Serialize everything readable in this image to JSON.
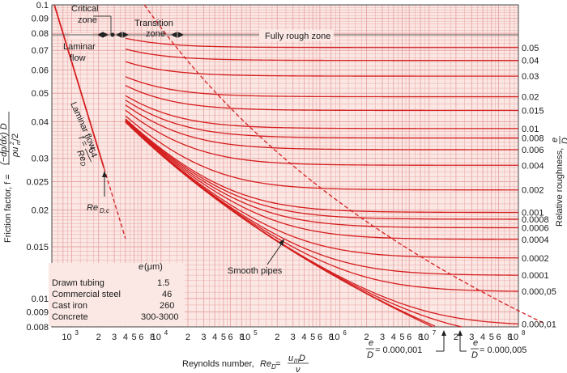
{
  "chart_data": {
    "type": "line",
    "title": "",
    "xlabel_prefix": "Reynolds number, ",
    "xlabel_symbol": "Re",
    "xlabel_sub": "D",
    "xlabel_eq": " = ",
    "xlabel_num": "u",
    "xlabel_num_sub": "m",
    "xlabel_num_tail": " D",
    "xlabel_den": "ν",
    "ylabel_left": "Friction factor, f = ",
    "ylabel_left_num": "(−dp/dx) D",
    "ylabel_left_den": "ρu",
    "ylabel_left_den_sup": "2",
    "ylabel_left_den_sub": "m",
    "ylabel_left_den_tail": "/2",
    "ylabel_right": "Relative roughness, ",
    "ylabel_right_num": "e",
    "ylabel_right_den": "D",
    "xscale": "log",
    "yscale": "log",
    "xlim": [
      600,
      100000000
    ],
    "ylim": [
      0.008,
      0.1
    ],
    "grid": true,
    "x_tick_labels": [
      {
        "x": 1000,
        "label": "10",
        "sup": "3"
      },
      {
        "x": 2000,
        "label": "2"
      },
      {
        "x": 3000,
        "label": "3"
      },
      {
        "x": 4000,
        "label": "4"
      },
      {
        "x": 5000,
        "label": "5"
      },
      {
        "x": 6000,
        "label": "6"
      },
      {
        "x": 8000,
        "label": "8"
      },
      {
        "x": 10000,
        "label": "10",
        "sup": "4"
      },
      {
        "x": 20000,
        "label": "2"
      },
      {
        "x": 30000,
        "label": "3"
      },
      {
        "x": 40000,
        "label": "4"
      },
      {
        "x": 50000,
        "label": "5"
      },
      {
        "x": 60000,
        "label": "6"
      },
      {
        "x": 80000,
        "label": "8"
      },
      {
        "x": 100000,
        "label": "10",
        "sup": "5"
      },
      {
        "x": 200000,
        "label": "2"
      },
      {
        "x": 300000,
        "label": "3"
      },
      {
        "x": 400000,
        "label": "4"
      },
      {
        "x": 500000,
        "label": "5"
      },
      {
        "x": 600000,
        "label": "6"
      },
      {
        "x": 800000,
        "label": "8"
      },
      {
        "x": 1000000,
        "label": "10",
        "sup": "6"
      },
      {
        "x": 2000000,
        "label": "2"
      },
      {
        "x": 3000000,
        "label": "3"
      },
      {
        "x": 4000000,
        "label": "4"
      },
      {
        "x": 5000000,
        "label": "5"
      },
      {
        "x": 6000000,
        "label": "6"
      },
      {
        "x": 8000000,
        "label": "8"
      },
      {
        "x": 10000000,
        "label": "10",
        "sup": "7"
      },
      {
        "x": 20000000,
        "label": "2"
      },
      {
        "x": 30000000,
        "label": "3"
      },
      {
        "x": 40000000,
        "label": "4"
      },
      {
        "x": 50000000,
        "label": "5"
      },
      {
        "x": 60000000,
        "label": "6"
      },
      {
        "x": 80000000,
        "label": "8"
      },
      {
        "x": 100000000,
        "label": "10",
        "sup": "8"
      }
    ],
    "y_tick_labels": [
      "0.1",
      "0.09",
      "0.08",
      "0.07",
      "0.06",
      "0.05",
      "0.04",
      "0.03",
      "0.025",
      "0.02",
      "0.015",
      "0.01",
      "0.009",
      "0.008"
    ],
    "y_tick_values": [
      0.1,
      0.09,
      0.08,
      0.07,
      0.06,
      0.05,
      0.04,
      0.03,
      0.025,
      0.02,
      0.015,
      0.01,
      0.009,
      0.008
    ],
    "series": [
      {
        "rr": 0.05,
        "label": "0.05"
      },
      {
        "rr": 0.04,
        "label": "0.04"
      },
      {
        "rr": 0.03,
        "label": "0.03"
      },
      {
        "rr": 0.02,
        "label": "0.02"
      },
      {
        "rr": 0.015,
        "label": "0.015"
      },
      {
        "rr": 0.01,
        "label": "0.01"
      },
      {
        "rr": 0.008,
        "label": "0.008"
      },
      {
        "rr": 0.006,
        "label": "0.006"
      },
      {
        "rr": 0.004,
        "label": "0.004"
      },
      {
        "rr": 0.002,
        "label": "0.002"
      },
      {
        "rr": 0.001,
        "label": "0.001"
      },
      {
        "rr": 0.0008,
        "label": "0.0008"
      },
      {
        "rr": 0.0006,
        "label": "0.0006"
      },
      {
        "rr": 0.0004,
        "label": "0.0004"
      },
      {
        "rr": 0.0002,
        "label": "0.0002"
      },
      {
        "rr": 0.0001,
        "label": "0.0001"
      },
      {
        "rr": 5e-05,
        "label": "0.000,05"
      },
      {
        "rr": 1e-05,
        "label": "0.000,01"
      },
      {
        "rr": 5e-06,
        "label": ""
      },
      {
        "rr": 1e-06,
        "label": ""
      },
      {
        "rr": 0,
        "label": ""
      }
    ],
    "laminar_formula": "f = 64/Re_D",
    "laminar_xrange": [
      600,
      2300
    ],
    "laminar_dashed_xrange": [
      2300,
      4000
    ],
    "colors": {
      "curve": "#d41e1e",
      "grid": "#e8a6a6",
      "background": "#fbe8e4",
      "text": "#1a1a1a"
    },
    "annotations": {
      "critical_zone": [
        "Critical",
        "zone"
      ],
      "transition_zone": [
        "Transition",
        "zone"
      ],
      "fully_rough_zone": "Fully rough zone",
      "laminar_flow_zone": [
        "Laminar",
        "flow"
      ],
      "laminar_flow_curve": "Laminar flow",
      "laminar_formula_f": "f = ",
      "laminar_formula_num": "64",
      "laminar_formula_den": "Re",
      "laminar_formula_den_sub": "D",
      "recrit_symbol": "Re",
      "recrit_sub": "D,c",
      "smooth_pipes": "Smooth pipes",
      "ed_callout_1_value": " = 0.000,001",
      "ed_callout_2_value": " = 0.000,005",
      "ed_e": "e",
      "ed_d": "D"
    },
    "roughness_table": {
      "header_symbol": "e",
      "header_unit": " (μm)",
      "rows": [
        {
          "material": "Drawn tubing",
          "value": "1.5"
        },
        {
          "material": "Commercial steel",
          "value": "46"
        },
        {
          "material": "Cast iron",
          "value": "260"
        },
        {
          "material": "Concrete",
          "value": "300-3000"
        }
      ]
    }
  }
}
